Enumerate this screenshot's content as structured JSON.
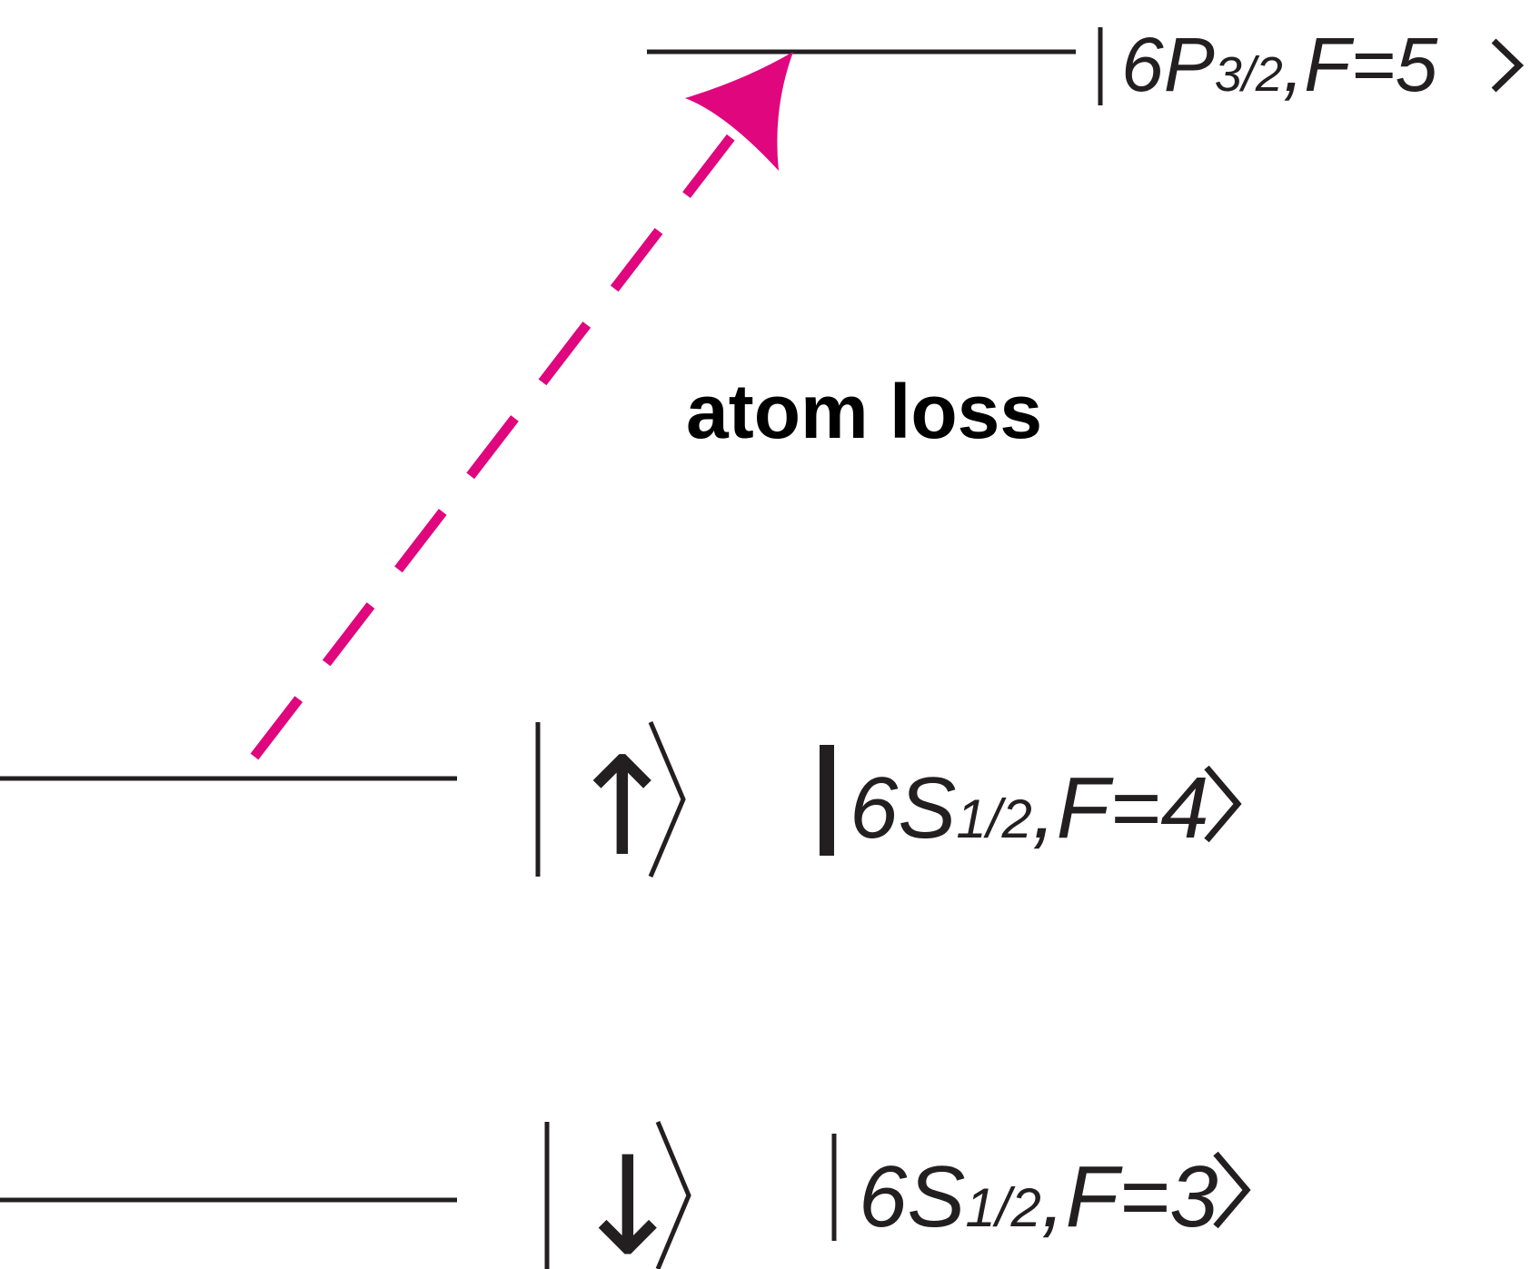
{
  "levels": {
    "excited": {
      "state": "6P",
      "sub": "3/2",
      "f_label": ",F=5"
    },
    "upper_ground": {
      "spin_label": "↑",
      "state": "6S",
      "sub": "1/2",
      "f_label": ",F=4"
    },
    "lower_ground": {
      "spin_label": "↓",
      "state": "6S",
      "sub": "1/2",
      "f_label": ",F=3"
    }
  },
  "transition": {
    "label": "atom loss",
    "color": "#e0067e"
  },
  "text_color": "#231f20"
}
